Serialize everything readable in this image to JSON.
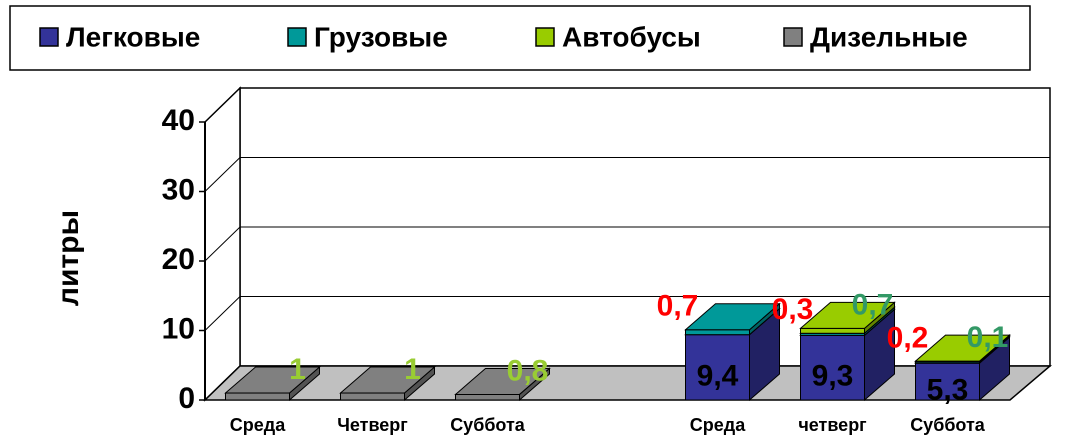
{
  "chart_data": {
    "type": "bar3d_stacked",
    "y_label": "литры",
    "categories": [
      "Среда",
      "Четверг",
      "Суббота",
      null,
      "Среда",
      "четверг",
      "Суббота"
    ],
    "ylim": [
      0,
      40
    ],
    "yticks": [
      0,
      10,
      20,
      30,
      40
    ],
    "grid": true,
    "legend": "top",
    "series": [
      {
        "name": "Легковые",
        "color": "#333399",
        "label_color": "#000000",
        "values": [
          null,
          null,
          null,
          null,
          9.4,
          9.3,
          5.3
        ],
        "value_labels": [
          null,
          null,
          null,
          null,
          "9,4",
          "9,3",
          "5,3"
        ]
      },
      {
        "name": "Грузовые",
        "color": "#009999",
        "label_color": "#ff0000",
        "values": [
          null,
          null,
          null,
          null,
          0.7,
          0.3,
          0.2
        ],
        "value_labels": [
          null,
          null,
          null,
          null,
          "0,7",
          "0,3",
          "0,2"
        ]
      },
      {
        "name": "Автобусы",
        "color": "#99cc00",
        "label_color": "#339966",
        "values": [
          null,
          null,
          null,
          null,
          null,
          0.7,
          0.1
        ],
        "value_labels": [
          null,
          null,
          null,
          null,
          null,
          "0,7",
          "0,1"
        ]
      },
      {
        "name": "Дизельные",
        "color": "#808080",
        "label_color": "#99cc33",
        "values": [
          1,
          1,
          0.8,
          null,
          null,
          null,
          null
        ],
        "value_labels": [
          "1",
          "1",
          "0,8",
          null,
          null,
          null,
          null
        ]
      }
    ]
  }
}
